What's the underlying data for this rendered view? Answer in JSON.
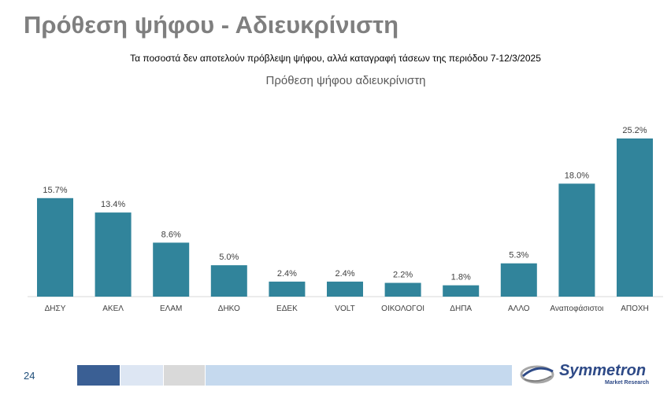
{
  "header": {
    "title": "Πρόθεση ψήφου - Αδιευκρίνιστη",
    "subtitle": "Τα ποσοστά δεν αποτελούν πρόβλεψη ψήφου, αλλά καταγραφή τάσεων της περιόδου 7-12/3/2025"
  },
  "chart_data": {
    "type": "bar",
    "title": "Πρόθεση ψήφου αδιευκρίνιστη",
    "categories": [
      "ΔΗΣΥ",
      "ΑΚΕΛ",
      "ΕΛΑΜ",
      "ΔΗΚΟ",
      "ΕΔΕΚ",
      "VOLT",
      "ΟΙΚΟΛΟΓΟΙ",
      "ΔΗΠΑ",
      "ΑΛΛΟ",
      "Αναποφάσιστοι",
      "ΑΠΟΧΗ"
    ],
    "values": [
      15.7,
      13.4,
      8.6,
      5.0,
      2.4,
      2.4,
      2.2,
      1.8,
      5.3,
      18.0,
      25.2
    ],
    "data_labels": [
      "15.7%",
      "13.4%",
      "8.6%",
      "5.0%",
      "2.4%",
      "2.4%",
      "2.2%",
      "1.8%",
      "5.3%",
      "18.0%",
      "25.2%"
    ],
    "xlabel": "",
    "ylabel": "",
    "ylim": [
      0,
      25.2
    ],
    "grid": false,
    "legend": "none",
    "bar_color": "#31849b"
  },
  "footer": {
    "page_number": "24",
    "bar_colors": [
      "#3a5f94",
      "#dde6f3",
      "#d9d9d9",
      "#c5d9ee"
    ],
    "logo": {
      "name": "Symmetron",
      "sub": "Market Research",
      "color": "#2e4a87"
    }
  }
}
